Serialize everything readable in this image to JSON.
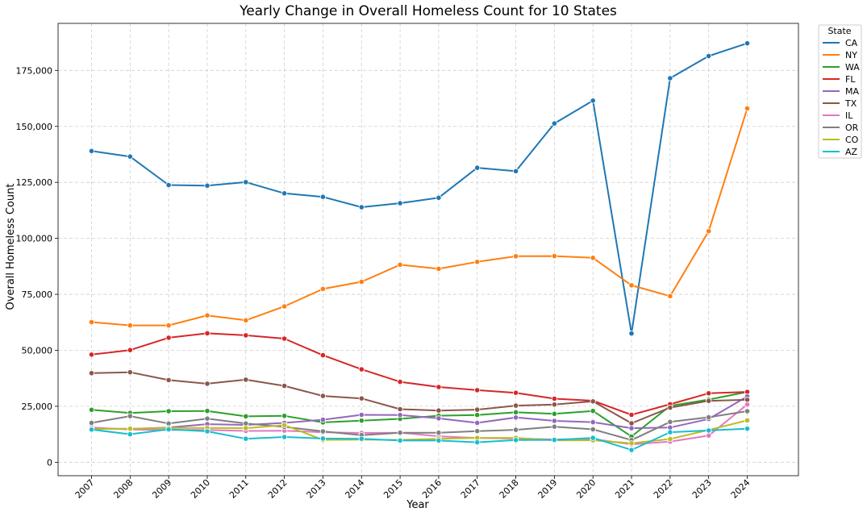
{
  "chart_data": {
    "type": "line",
    "title": "Yearly Change in Overall Homeless Count for 10 States",
    "xlabel": "Year",
    "ylabel": "Overall Homeless Count",
    "ylim": [
      -6000,
      196000
    ],
    "yticks": [
      0,
      25000,
      50000,
      75000,
      100000,
      125000,
      150000,
      175000
    ],
    "ytick_labels": [
      "0",
      "25,000",
      "50,000",
      "75,000",
      "100,000",
      "125,000",
      "150,000",
      "175,000"
    ],
    "grid": true,
    "legend": {
      "title": "State",
      "placement": "outside-top-right"
    },
    "x": [
      "2007",
      "2008",
      "2009",
      "2010",
      "2011",
      "2012",
      "2013",
      "2014",
      "2015",
      "2016",
      "2017",
      "2018",
      "2019",
      "2020",
      "2021",
      "2022",
      "2023",
      "2024"
    ],
    "series": [
      {
        "name": "CA",
        "color": "#1f77b4",
        "values": [
          139000,
          136500,
          123800,
          123500,
          125100,
          120100,
          118500,
          113900,
          115700,
          118100,
          131500,
          130000,
          151300,
          161500,
          57500,
          171500,
          181400,
          187100
        ]
      },
      {
        "name": "NY",
        "color": "#ff7f0e",
        "values": [
          62600,
          61100,
          61100,
          65600,
          63400,
          69600,
          77400,
          80600,
          88200,
          86400,
          89500,
          92000,
          92100,
          91300,
          79000,
          74200,
          103200,
          158000
        ]
      },
      {
        "name": "WA",
        "color": "#2ca02c",
        "values": [
          23400,
          22000,
          22800,
          22900,
          20500,
          20700,
          17800,
          18600,
          19400,
          20800,
          21100,
          22300,
          21600,
          22900,
          11500,
          25200,
          28000,
          31400
        ]
      },
      {
        "name": "FL",
        "color": "#d62728",
        "values": [
          48100,
          50100,
          55600,
          57600,
          56700,
          55200,
          47800,
          41500,
          35900,
          33600,
          32200,
          31000,
          28400,
          27500,
          21200,
          25900,
          30800,
          31400
        ]
      },
      {
        "name": "MA",
        "color": "#9467bd",
        "values": [
          15100,
          14900,
          15500,
          17000,
          16700,
          17600,
          19000,
          21200,
          21100,
          19600,
          17600,
          20000,
          18500,
          17900,
          15200,
          15500,
          19300,
          29400
        ]
      },
      {
        "name": "TX",
        "color": "#8c564b",
        "values": [
          39800,
          40200,
          36700,
          35100,
          36900,
          34100,
          29600,
          28500,
          23700,
          23100,
          23500,
          25300,
          25800,
          27200,
          17400,
          24400,
          27400,
          27900
        ]
      },
      {
        "name": "IL",
        "color": "#e377c2",
        "values": [
          15500,
          14600,
          14400,
          14400,
          14000,
          14100,
          13400,
          13100,
          13200,
          11600,
          10800,
          10600,
          10200,
          10400,
          8000,
          9200,
          11900,
          25800
        ]
      },
      {
        "name": "OR",
        "color": "#7f7f7f",
        "values": [
          17600,
          20600,
          17300,
          19500,
          17300,
          15800,
          13800,
          12100,
          13200,
          13200,
          13900,
          14500,
          15900,
          14700,
          9900,
          18000,
          20100,
          22800
        ]
      },
      {
        "name": "CO",
        "color": "#bcbd22",
        "values": [
          14800,
          15000,
          15300,
          15300,
          15200,
          16600,
          10000,
          10100,
          10000,
          10500,
          10900,
          10900,
          9800,
          9800,
          8500,
          10400,
          14400,
          18700
        ]
      },
      {
        "name": "AZ",
        "color": "#17becf",
        "values": [
          14600,
          12500,
          14700,
          13800,
          10500,
          11300,
          10600,
          10500,
          9700,
          9700,
          8900,
          9900,
          10000,
          10900,
          5500,
          13400,
          14200,
          15000
        ]
      }
    ]
  }
}
